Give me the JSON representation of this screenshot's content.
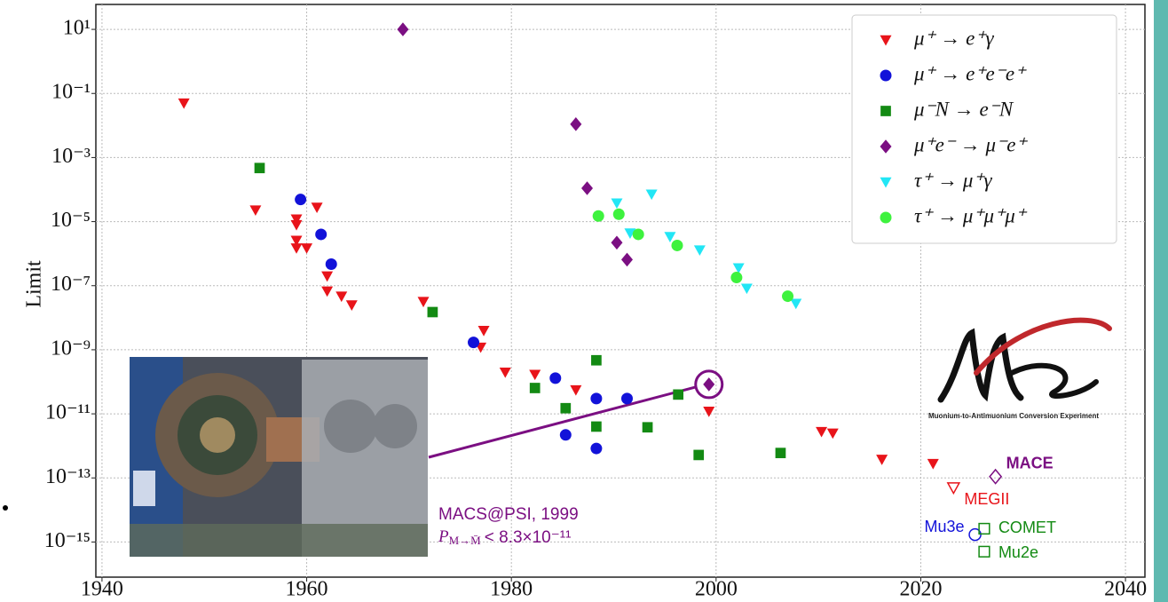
{
  "chart_data": {
    "type": "scatter",
    "y_label": "Limit",
    "log_y": true,
    "grid": true,
    "legend": "upper right",
    "xlim": [
      1939.4,
      2041.9
    ],
    "ylim": [
      8e-17,
      60
    ],
    "xticks": [
      1940,
      1960,
      1980,
      2000,
      2020,
      2040
    ],
    "yticks": [
      {
        "value": 10,
        "label": "10¹"
      },
      {
        "value": 0.1,
        "label": "10⁻¹"
      },
      {
        "value": 0.001,
        "label": "10⁻³"
      },
      {
        "value": 1e-05,
        "label": "10⁻⁵"
      },
      {
        "value": 1e-07,
        "label": "10⁻⁷"
      },
      {
        "value": 1e-09,
        "label": "10⁻⁹"
      },
      {
        "value": 1e-11,
        "label": "10⁻¹¹"
      },
      {
        "value": 1e-13,
        "label": "10⁻¹³"
      },
      {
        "value": 1e-15,
        "label": "10⁻¹⁵"
      }
    ],
    "series": [
      {
        "name": "μ⁺ → e⁺γ",
        "color": "#e8141a",
        "marker": "v",
        "x": [
          1948,
          1955,
          1959,
          1959,
          1959,
          1959,
          1960,
          1961,
          1962,
          1962,
          1963.4,
          1964.4,
          1971.4,
          1977.3,
          1977,
          1979.4,
          1982.3,
          1986.3,
          1999.3,
          2010.3,
          2011.4,
          2016.2,
          2021.2
        ],
        "values": [
          0.05,
          2.3e-05,
          1.2e-05,
          8e-06,
          2.6e-06,
          1.5e-06,
          1.5e-06,
          2.8e-05,
          2e-07,
          6.8e-08,
          4.7e-08,
          2.5e-08,
          3.2e-08,
          4e-09,
          1.2e-09,
          2e-10,
          1.7e-10,
          5.6e-11,
          1.2e-11,
          2.8e-12,
          2.5e-12,
          3.8e-13,
          2.8e-13
        ]
      },
      {
        "name": "μ⁺ → e⁺e⁻e⁺",
        "color": "#1212d9",
        "marker": "o",
        "x": [
          1959.4,
          1961.4,
          1962.4,
          1976.3,
          1984.3,
          1985.3,
          1988.3,
          1988.3,
          1991.3
        ],
        "values": [
          4.9e-05,
          4e-06,
          4.7e-07,
          1.7e-09,
          1.3e-10,
          2.2e-12,
          3e-11,
          8.3e-13,
          3e-11
        ]
      },
      {
        "name": "μ⁻N → e⁻N",
        "color": "#138a13",
        "marker": "s",
        "x": [
          1955.4,
          1972.3,
          1982.3,
          1985.3,
          1988.3,
          1988.3,
          1993.3,
          1996.3,
          1998.3,
          2006.3
        ],
        "values": [
          0.00047,
          1.5e-08,
          6.4e-11,
          1.5e-11,
          4.7e-10,
          4e-12,
          3.8e-12,
          4e-11,
          5.2e-13,
          6e-13
        ]
      },
      {
        "name": "μ⁺e⁻ → μ⁻e⁺",
        "color": "#7b0f82",
        "marker": "D",
        "x": [
          1969.4,
          1986.3,
          1987.4,
          1990.3,
          1991.3,
          1999.3
        ],
        "values": [
          10,
          0.011,
          0.00011,
          2.2e-06,
          6.5e-07,
          8.3e-11
        ]
      },
      {
        "name": "τ⁺ → μ⁺γ",
        "color": "#22e6f5",
        "marker": "v",
        "x": [
          1990.3,
          1991.6,
          1993.7,
          1995.5,
          1998.4,
          2002.2,
          2003,
          2007.8
        ],
        "values": [
          3.8e-05,
          4.4e-06,
          7.2e-05,
          3.4e-06,
          1.3e-06,
          3.6e-07,
          8.3e-08,
          2.8e-08
        ]
      },
      {
        "name": "τ⁺ → μ⁺μ⁺μ⁺",
        "color": "#3ef23e",
        "marker": "o",
        "x": [
          1988.5,
          1990.5,
          1992.4,
          1996.2,
          2002,
          2007
        ],
        "values": [
          1.5e-05,
          1.7e-05,
          4e-06,
          1.8e-06,
          1.8e-07,
          4.7e-08
        ]
      }
    ],
    "projections": [
      {
        "name": "MACE",
        "color": "#7b0f82",
        "marker": "D",
        "x": 2027.3,
        "value": 1.1e-13
      },
      {
        "name": "MEGII",
        "color": "#e8141a",
        "marker": "v",
        "x": 2023.2,
        "value": 5e-14
      },
      {
        "name": "Mu3e",
        "color": "#1212d9",
        "marker": "o",
        "x": 2025.3,
        "value": 1.7e-15
      },
      {
        "name": "COMET",
        "color": "#138a13",
        "marker": "s",
        "x": 2026.2,
        "value": 2.6e-15
      },
      {
        "name": "Mu2e",
        "color": "#138a13",
        "marker": "s",
        "x": 2026.2,
        "value": 5e-16
      }
    ],
    "annotation": {
      "title": "MACS@PSI, 1999",
      "symbol": "P",
      "subscript": "M→M̄",
      "relation": "< 8.3×10⁻¹¹"
    },
    "logo_caption": "Muonium-to-Antimuonium Conversion Experiment"
  }
}
